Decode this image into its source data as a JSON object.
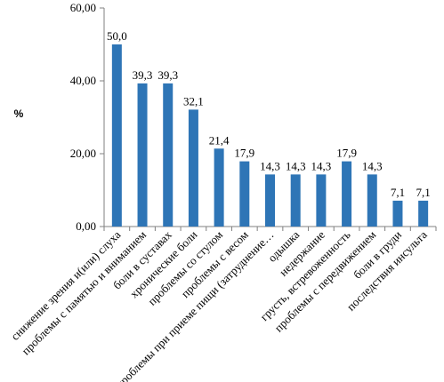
{
  "chart_data": {
    "type": "bar",
    "ylabel": "%",
    "ylim": [
      0,
      60
    ],
    "yticks": [
      0,
      20,
      40,
      60
    ],
    "ytick_labels": [
      "0,00",
      "20,00",
      "40,00",
      "60,00"
    ],
    "grid": false,
    "bar_color": "#2E75B6",
    "categories": [
      "снижение зрения и(или) слуха",
      "проблемы с памятью и вниманием",
      "боли в суставах",
      "хронические боли",
      "проблемы со стулом",
      "проблемы с весом",
      "проблемы при приеме пищи (затруднение…",
      "одышка",
      "недержание",
      "грусть, встревоженность",
      "проблемы с передвижением",
      "боли в груди",
      "последствия инсульта"
    ],
    "values": [
      50.0,
      39.3,
      39.3,
      32.1,
      21.4,
      17.9,
      14.3,
      14.3,
      14.3,
      17.9,
      14.3,
      7.1,
      7.1
    ],
    "value_labels": [
      "50,0",
      "39,3",
      "39,3",
      "32,1",
      "21,4",
      "17,9",
      "14,3",
      "14,3",
      "14,3",
      "17,9",
      "14,3",
      "7,1",
      "7,1"
    ]
  }
}
